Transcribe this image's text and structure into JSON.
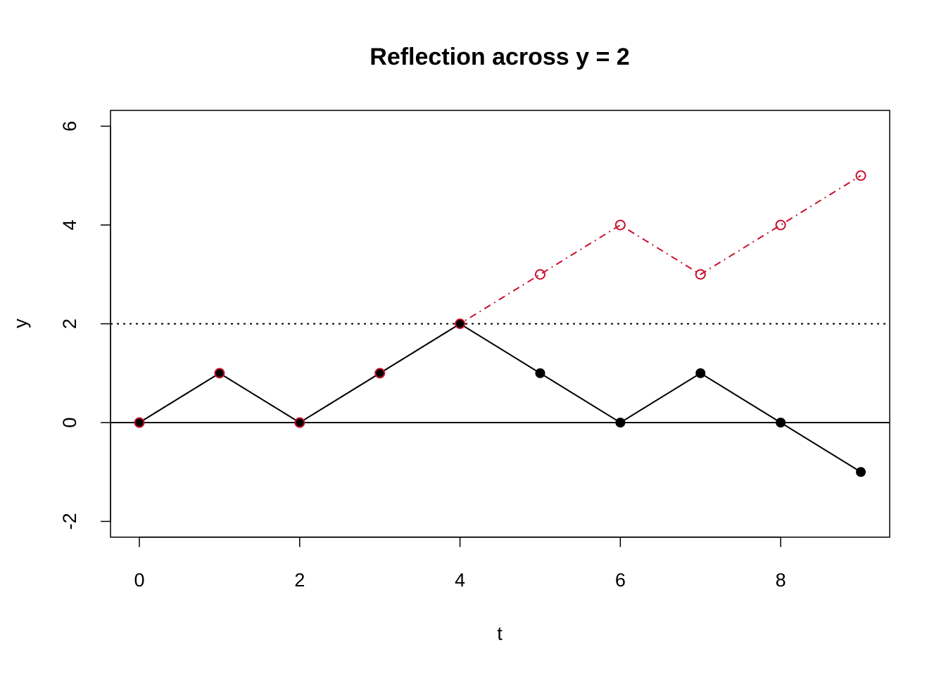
{
  "chart_data": {
    "type": "line",
    "title": "Reflection across y = 2",
    "xlabel": "t",
    "ylabel": "y",
    "xlim": [
      -0.36,
      9.36
    ],
    "ylim": [
      -2.32,
      6.32
    ],
    "xticks": [
      "0",
      "2",
      "4",
      "6",
      "8"
    ],
    "yticks": [
      "-2",
      "0",
      "2",
      "4",
      "6"
    ],
    "grid": false,
    "x": [
      0,
      1,
      2,
      3,
      4,
      5,
      6,
      7,
      8,
      9
    ],
    "series": [
      {
        "values": [
          0,
          1,
          0,
          1,
          2,
          1,
          0,
          1,
          0,
          -1
        ],
        "color": "#000000",
        "line": "solid",
        "marker": "filled-circle"
      },
      {
        "values": [
          0,
          1,
          0,
          1,
          2,
          3,
          4,
          3,
          4,
          5
        ],
        "color": "#c8102e",
        "line": "dashdot",
        "marker": "open-circle"
      }
    ],
    "reference_lines": [
      {
        "y": 0,
        "style": "solid",
        "color": "#000000"
      },
      {
        "y": 2,
        "style": "dotted",
        "color": "#000000"
      }
    ]
  }
}
